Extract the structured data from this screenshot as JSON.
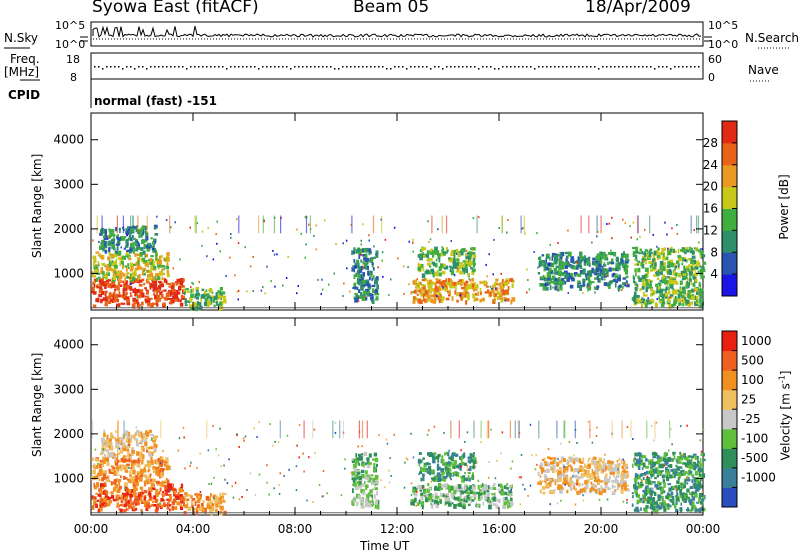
{
  "header": {
    "radar": "Syowa East (fitACF)",
    "beam": "Beam 05",
    "date": "18/Apr/2009"
  },
  "status_panels": {
    "nsky_label": "N.Sky",
    "nsearch_label": "N.Search",
    "freq_label_line1": "Freq.",
    "freq_label_line2": "[MHz]",
    "nave_label": "Nave",
    "cpid_label": "CPID",
    "cpid_value": "normal (fast) -151",
    "noise_axis_left": [
      "10^5",
      "10^0"
    ],
    "noise_axis_right": [
      "10^5",
      "10^0"
    ],
    "freq_axis_left": [
      "18",
      "8"
    ],
    "freq_axis_right": [
      "60",
      "0"
    ]
  },
  "chart_data": [
    {
      "type": "heatmap",
      "title": "",
      "xlabel": "Time UT",
      "ylabel": "Slant Range [km]",
      "xticks": [
        "00:00",
        "04:00",
        "08:00",
        "12:00",
        "16:00",
        "20:00",
        "00:00"
      ],
      "yticks": [
        "1000",
        "2000",
        "3000",
        "4000"
      ],
      "xlim": [
        0,
        24
      ],
      "ylim": [
        180,
        4600
      ],
      "colorbar": {
        "label": "Power [dB]",
        "ticks": [
          "4",
          "8",
          "12",
          "16",
          "20",
          "24",
          "28"
        ],
        "colors": [
          "#1a14e6",
          "#2a54b0",
          "#2f8f6a",
          "#3fae3f",
          "#c8c81a",
          "#e89a22",
          "#e86318",
          "#e02a14"
        ]
      },
      "echo_regions": [
        {
          "t0": 0.0,
          "t1": 3.6,
          "r0": 300,
          "r1": 900,
          "level": 7
        },
        {
          "t0": 0.0,
          "t1": 3.0,
          "r0": 900,
          "r1": 1500,
          "level": 4
        },
        {
          "t0": 0.3,
          "t1": 2.5,
          "r0": 1500,
          "r1": 2100,
          "level": 2
        },
        {
          "t0": 3.6,
          "t1": 5.2,
          "r0": 250,
          "r1": 700,
          "level": 3
        },
        {
          "t0": 10.2,
          "t1": 11.2,
          "r0": 400,
          "r1": 1600,
          "level": 2
        },
        {
          "t0": 12.5,
          "t1": 16.5,
          "r0": 400,
          "r1": 900,
          "level": 5
        },
        {
          "t0": 12.8,
          "t1": 15.0,
          "r0": 1000,
          "r1": 1600,
          "level": 3
        },
        {
          "t0": 17.5,
          "t1": 21.0,
          "r0": 700,
          "r1": 1500,
          "level": 2
        },
        {
          "t0": 21.2,
          "t1": 24.0,
          "r0": 300,
          "r1": 1600,
          "level": 3
        }
      ]
    },
    {
      "type": "heatmap",
      "title": "",
      "xlabel": "Time UT",
      "ylabel": "Slant Range [km]",
      "xticks": [
        "00:00",
        "04:00",
        "08:00",
        "12:00",
        "16:00",
        "20:00",
        "00:00"
      ],
      "yticks": [
        "1000",
        "2000",
        "3000",
        "4000"
      ],
      "xlim": [
        0,
        24
      ],
      "ylim": [
        180,
        4600
      ],
      "colorbar": {
        "label": "Velocity [m s^-1]",
        "ticks": [
          "1000",
          "500",
          "100",
          "25",
          "-25",
          "-100",
          "-500",
          "-1000"
        ],
        "colors": [
          "#2a4ec0",
          "#3a7f9a",
          "#2f8f5a",
          "#5fbf3a",
          "#c8c8c8",
          "#f0c060",
          "#f09020",
          "#f06020",
          "#e82010"
        ]
      },
      "echo_regions": [
        {
          "t0": 0.0,
          "t1": 3.6,
          "r0": 300,
          "r1": 900,
          "level": 7
        },
        {
          "t0": 0.0,
          "t1": 3.0,
          "r0": 900,
          "r1": 1500,
          "level": 6
        },
        {
          "t0": 0.3,
          "t1": 2.5,
          "r0": 1500,
          "r1": 2100,
          "level": 5
        },
        {
          "t0": 3.6,
          "t1": 5.2,
          "r0": 250,
          "r1": 700,
          "level": 6
        },
        {
          "t0": 10.2,
          "t1": 11.2,
          "r0": 400,
          "r1": 1600,
          "level": 3
        },
        {
          "t0": 12.5,
          "t1": 16.5,
          "r0": 400,
          "r1": 900,
          "level": 3
        },
        {
          "t0": 12.8,
          "t1": 15.0,
          "r0": 1000,
          "r1": 1600,
          "level": 2
        },
        {
          "t0": 17.5,
          "t1": 21.0,
          "r0": 700,
          "r1": 1500,
          "level": 5
        },
        {
          "t0": 21.2,
          "t1": 24.0,
          "r0": 300,
          "r1": 1600,
          "level": 2
        }
      ]
    }
  ]
}
